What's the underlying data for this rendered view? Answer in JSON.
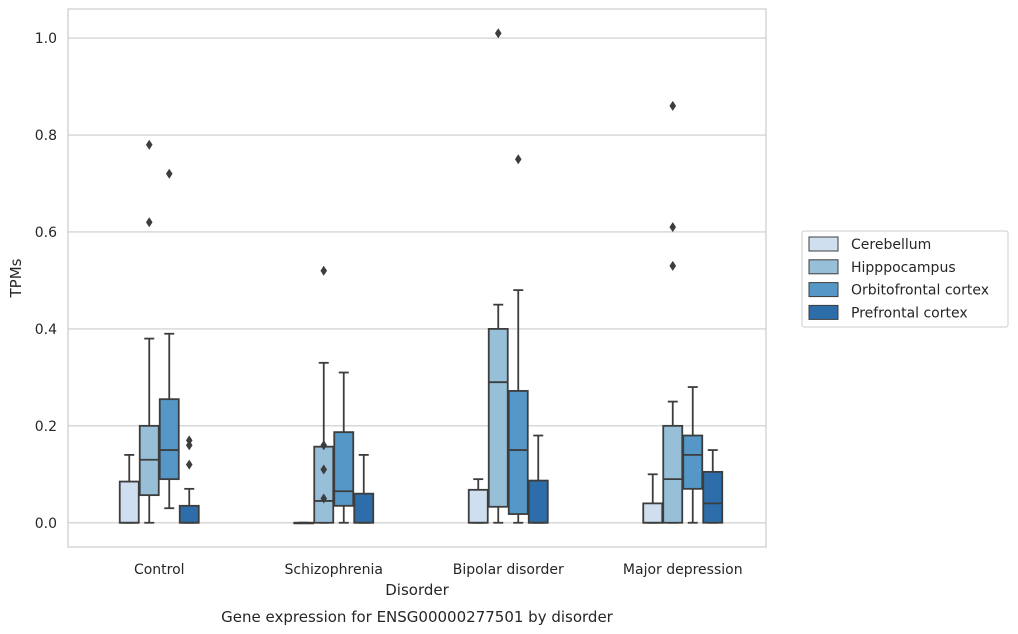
{
  "chart_data": {
    "type": "box",
    "title": "Gene expression for ENSG00000277501 by disorder",
    "xlabel": "Disorder",
    "ylabel": "TPMs",
    "ylim": [
      -0.05,
      1.06
    ],
    "yticks": [
      0.0,
      0.2,
      0.4,
      0.6,
      0.8,
      1.0
    ],
    "ytick_labels": [
      "0.0",
      "0.2",
      "0.4",
      "0.6",
      "0.8",
      "1.0"
    ],
    "grid": "horizontal",
    "legend_placement": "outside-right",
    "categories": [
      "Control",
      "Schizophrenia",
      "Bipolar disorder",
      "Major depression"
    ],
    "series": [
      {
        "name": "Cerebellum",
        "color": "#cfdfef",
        "boxes": [
          {
            "whislo": 0.0,
            "q1": 0.0,
            "med": 0.0,
            "q3": 0.085,
            "whishi": 0.14,
            "fliers": []
          },
          {
            "whislo": 0.0,
            "q1": 0.0,
            "med": 0.0,
            "q3": 0.0,
            "whishi": 0.0,
            "fliers": []
          },
          {
            "whislo": 0.0,
            "q1": 0.0,
            "med": 0.0,
            "q3": 0.068,
            "whishi": 0.09,
            "fliers": []
          },
          {
            "whislo": 0.0,
            "q1": 0.0,
            "med": 0.0,
            "q3": 0.04,
            "whishi": 0.1,
            "fliers": []
          }
        ]
      },
      {
        "name": "Hipppocampus",
        "color": "#97bfd8",
        "boxes": [
          {
            "whislo": 0.0,
            "q1": 0.057,
            "med": 0.13,
            "q3": 0.2,
            "whishi": 0.38,
            "fliers": [
              0.62,
              0.78
            ]
          },
          {
            "whislo": 0.0,
            "q1": 0.0,
            "med": 0.045,
            "q3": 0.157,
            "whishi": 0.33,
            "fliers": [
              0.05,
              0.11,
              0.16,
              0.52
            ]
          },
          {
            "whislo": 0.0,
            "q1": 0.033,
            "med": 0.29,
            "q3": 0.4,
            "whishi": 0.45,
            "fliers": [
              1.01
            ]
          },
          {
            "whislo": 0.0,
            "q1": 0.0,
            "med": 0.09,
            "q3": 0.2,
            "whishi": 0.25,
            "fliers": [
              0.53,
              0.61,
              0.86
            ]
          }
        ]
      },
      {
        "name": "Orbitofrontal cortex",
        "color": "#5597c6",
        "boxes": [
          {
            "whislo": 0.03,
            "q1": 0.09,
            "med": 0.15,
            "q3": 0.255,
            "whishi": 0.39,
            "fliers": [
              0.72
            ]
          },
          {
            "whislo": 0.0,
            "q1": 0.035,
            "med": 0.065,
            "q3": 0.187,
            "whishi": 0.31,
            "fliers": []
          },
          {
            "whislo": 0.0,
            "q1": 0.018,
            "med": 0.15,
            "q3": 0.272,
            "whishi": 0.48,
            "fliers": [
              0.75
            ]
          },
          {
            "whislo": 0.0,
            "q1": 0.07,
            "med": 0.14,
            "q3": 0.18,
            "whishi": 0.28,
            "fliers": []
          }
        ]
      },
      {
        "name": "Prefrontal cortex",
        "color": "#2d6da9",
        "boxes": [
          {
            "whislo": 0.0,
            "q1": 0.0,
            "med": 0.0,
            "q3": 0.035,
            "whishi": 0.07,
            "fliers": [
              0.12,
              0.16,
              0.17
            ]
          },
          {
            "whislo": 0.0,
            "q1": 0.0,
            "med": 0.0,
            "q3": 0.06,
            "whishi": 0.14,
            "fliers": []
          },
          {
            "whislo": 0.0,
            "q1": 0.0,
            "med": 0.0,
            "q3": 0.087,
            "whishi": 0.18,
            "fliers": []
          },
          {
            "whislo": 0.0,
            "q1": 0.0,
            "med": 0.04,
            "q3": 0.105,
            "whishi": 0.15,
            "fliers": []
          }
        ]
      }
    ]
  }
}
